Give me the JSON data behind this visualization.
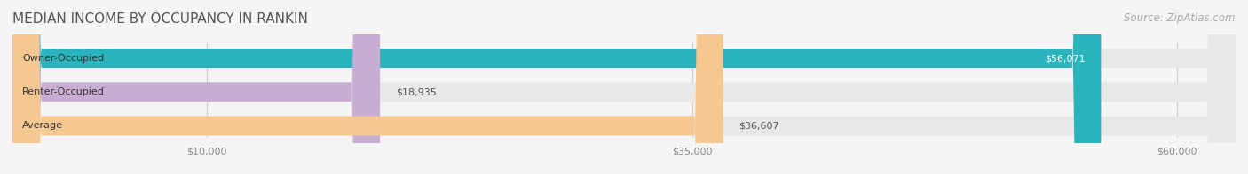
{
  "title": "MEDIAN INCOME BY OCCUPANCY IN RANKIN",
  "source": "Source: ZipAtlas.com",
  "categories": [
    "Owner-Occupied",
    "Renter-Occupied",
    "Average"
  ],
  "values": [
    56071,
    18935,
    36607
  ],
  "bar_colors": [
    "#2ab3bc",
    "#c9aed4",
    "#f5c891"
  ],
  "bar_edge_colors": [
    "#2ab3bc",
    "#c9aed4",
    "#f5c891"
  ],
  "label_color": "#888888",
  "value_labels": [
    "$56,071",
    "$18,935",
    "$36,607"
  ],
  "xtick_labels": [
    "$10,000",
    "$35,000",
    "$60,000"
  ],
  "xtick_values": [
    10000,
    35000,
    60000
  ],
  "xlim": [
    0,
    63000
  ],
  "background_color": "#f5f5f5",
  "bar_background_color": "#e8e8e8",
  "title_fontsize": 11,
  "source_fontsize": 8.5,
  "bar_label_fontsize": 8,
  "value_label_fontsize": 8,
  "tick_fontsize": 8
}
